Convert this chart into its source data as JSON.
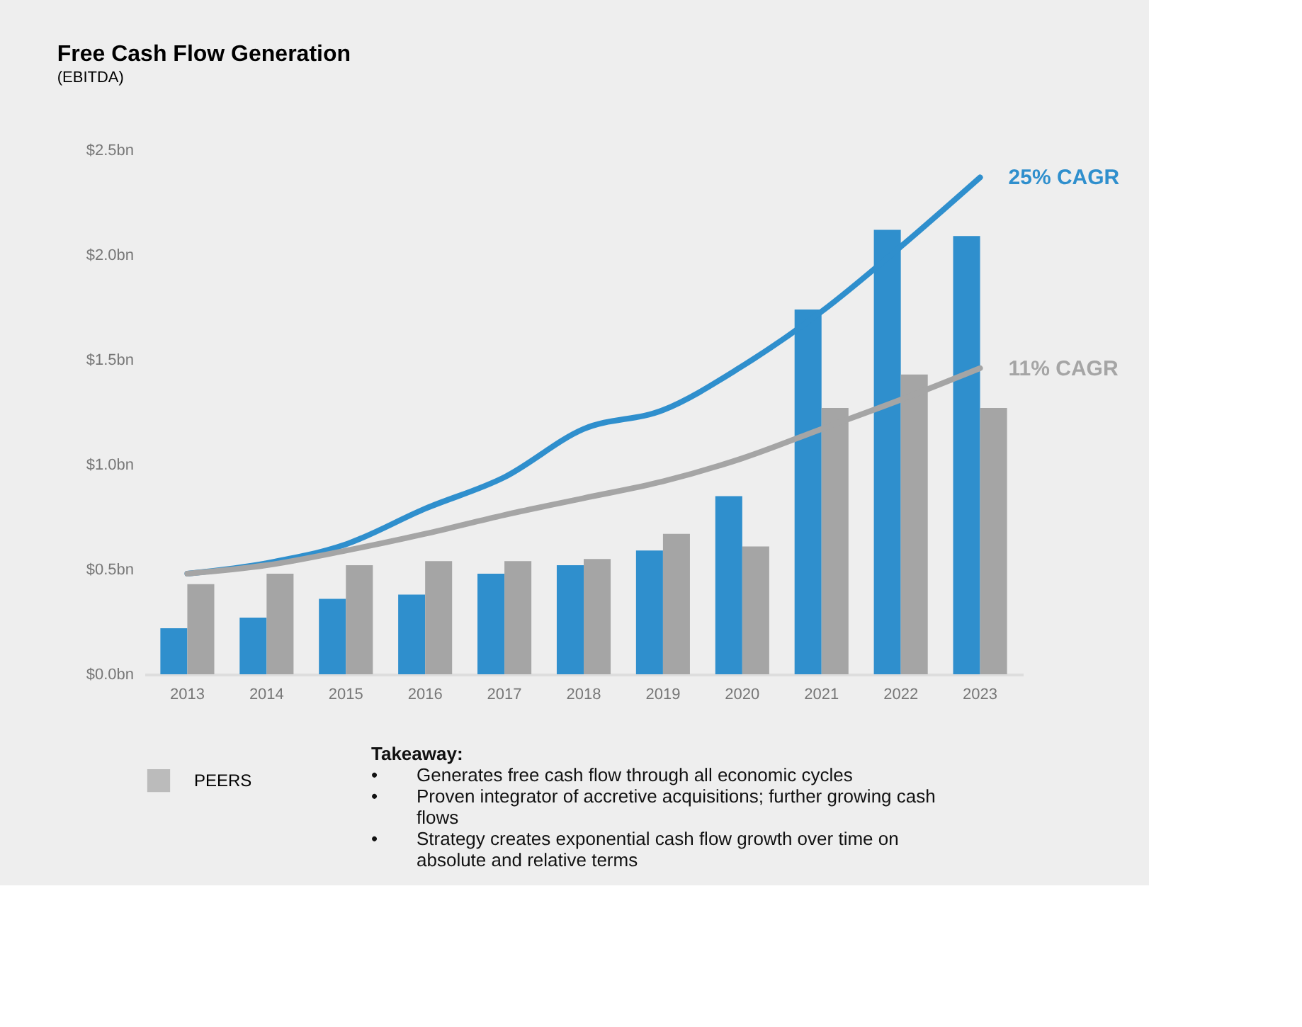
{
  "chart_data": {
    "type": "bar",
    "title": "Free Cash Flow Generation",
    "subtitle": "(EBITDA)",
    "categories": [
      "2013",
      "2014",
      "2015",
      "2016",
      "2017",
      "2018",
      "2019",
      "2020",
      "2021",
      "2022",
      "2023"
    ],
    "series": [
      {
        "color": "#2f8fcd",
        "values": [
          0.22,
          0.27,
          0.36,
          0.38,
          0.48,
          0.52,
          0.59,
          0.85,
          1.74,
          2.12,
          2.09
        ]
      },
      {
        "name": "PEERS",
        "color": "#a5a5a5",
        "values": [
          0.43,
          0.48,
          0.52,
          0.54,
          0.54,
          0.55,
          0.67,
          0.61,
          1.27,
          1.43,
          1.27
        ]
      },
      {
        "type": "line",
        "color": "#2f8fcd",
        "values": [
          0.48,
          0.53,
          0.62,
          0.79,
          0.94,
          1.17,
          1.26,
          1.47,
          1.73,
          2.04,
          2.37
        ]
      },
      {
        "type": "line",
        "color": "#a5a5a5",
        "values": [
          0.48,
          0.52,
          0.59,
          0.67,
          0.76,
          0.84,
          0.92,
          1.03,
          1.17,
          1.31,
          1.46
        ]
      }
    ],
    "ylim": [
      0,
      2.5
    ],
    "yticks": [
      {
        "value": 0,
        "label": "$0.0bn"
      },
      {
        "value": 0.5,
        "label": "$0.5bn"
      },
      {
        "value": 1,
        "label": "$1.0bn"
      },
      {
        "value": 1.5,
        "label": "$1.5bn"
      },
      {
        "value": 2,
        "label": "$2.0bn"
      },
      {
        "value": 2.5,
        "label": "$2.5bn"
      }
    ],
    "grid": false,
    "legend": "bottom left",
    "annotations": [
      {
        "text": "25% CAGR",
        "x": "2023",
        "y": 2.37
      },
      {
        "text": "11% CAGR",
        "x": "2023",
        "y": 1.46
      },
      "Takeaway:",
      "•   Generates free cash flow through all economic cycles",
      "•   Proven integrator of accretive acquisitions; further growing cash flows",
      "•   Strategy creates exponential cash flow growth over time on absolute and relative terms"
    ]
  }
}
